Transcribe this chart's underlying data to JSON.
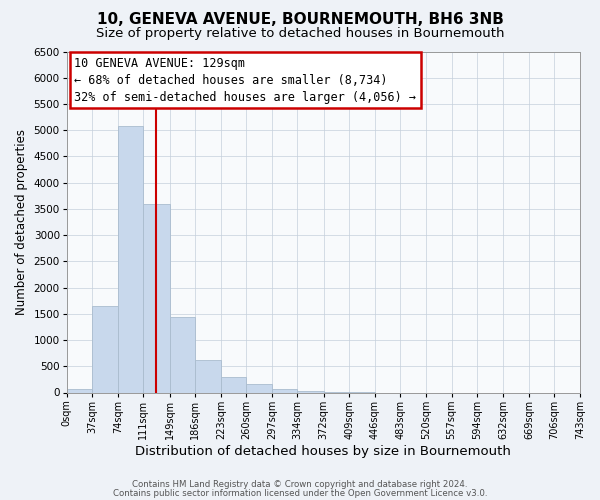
{
  "title": "10, GENEVA AVENUE, BOURNEMOUTH, BH6 3NB",
  "subtitle": "Size of property relative to detached houses in Bournemouth",
  "xlabel": "Distribution of detached houses by size in Bournemouth",
  "ylabel": "Number of detached properties",
  "bar_edges": [
    0,
    37,
    74,
    111,
    149,
    186,
    223,
    260,
    297,
    334,
    372,
    409,
    446,
    483,
    520,
    557,
    594,
    632,
    669,
    706,
    743
  ],
  "bar_heights": [
    60,
    1650,
    5080,
    3590,
    1430,
    610,
    300,
    155,
    70,
    30,
    10,
    5,
    0,
    0,
    0,
    0,
    0,
    0,
    0,
    0
  ],
  "bar_color": "#c8d8ec",
  "bar_edgecolor": "#aabcce",
  "vline_x": 129,
  "vline_color": "#cc0000",
  "ylim": [
    0,
    6500
  ],
  "yticks": [
    0,
    500,
    1000,
    1500,
    2000,
    2500,
    3000,
    3500,
    4000,
    4500,
    5000,
    5500,
    6000,
    6500
  ],
  "annotation_text_line1": "10 GENEVA AVENUE: 129sqm",
  "annotation_text_line2": "← 68% of detached houses are smaller (8,734)",
  "annotation_text_line3": "32% of semi-detached houses are larger (4,056) →",
  "annotation_fontsize": 8.5,
  "title_fontsize": 11,
  "subtitle_fontsize": 9.5,
  "xlabel_fontsize": 9.5,
  "ylabel_fontsize": 8.5,
  "tick_labels": [
    "0sqm",
    "37sqm",
    "74sqm",
    "111sqm",
    "149sqm",
    "186sqm",
    "223sqm",
    "260sqm",
    "297sqm",
    "334sqm",
    "372sqm",
    "409sqm",
    "446sqm",
    "483sqm",
    "520sqm",
    "557sqm",
    "594sqm",
    "632sqm",
    "669sqm",
    "706sqm",
    "743sqm"
  ],
  "footer_line1": "Contains HM Land Registry data © Crown copyright and database right 2024.",
  "footer_line2": "Contains public sector information licensed under the Open Government Licence v3.0.",
  "background_color": "#eef2f7",
  "plot_bg_color": "#f8fafc",
  "grid_color": "#c5d0dc"
}
